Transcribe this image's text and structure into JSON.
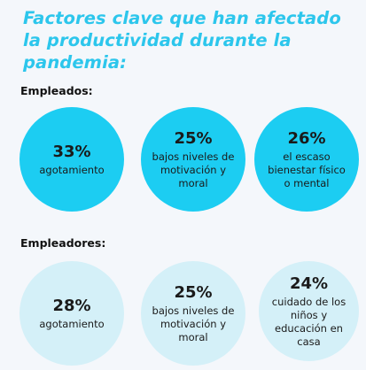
{
  "chart_data": {
    "type": "bubble-infographic",
    "title": "Factores clave que han afectado la productividad durante la pandemia:",
    "groups": [
      {
        "name": "Empleados:",
        "items": [
          {
            "value": "33%",
            "label": "agotamiento"
          },
          {
            "value": "25%",
            "label": "bajos niveles de motivación y moral"
          },
          {
            "value": "26%",
            "label": "el escaso bienestar físico o mental"
          }
        ]
      },
      {
        "name": "Empleadores:",
        "items": [
          {
            "value": "28%",
            "label": "agotamiento"
          },
          {
            "value": "25%",
            "label": "bajos niveles de motivación y moral"
          },
          {
            "value": "24%",
            "label": "cuidado de los niños y educación en casa"
          }
        ]
      }
    ]
  },
  "colors": {
    "title": "#2cc6ec",
    "empleados_circle": "#1ccdf2",
    "empleadores_circle": "#d4f0f8",
    "background": "#f4f7fb"
  }
}
